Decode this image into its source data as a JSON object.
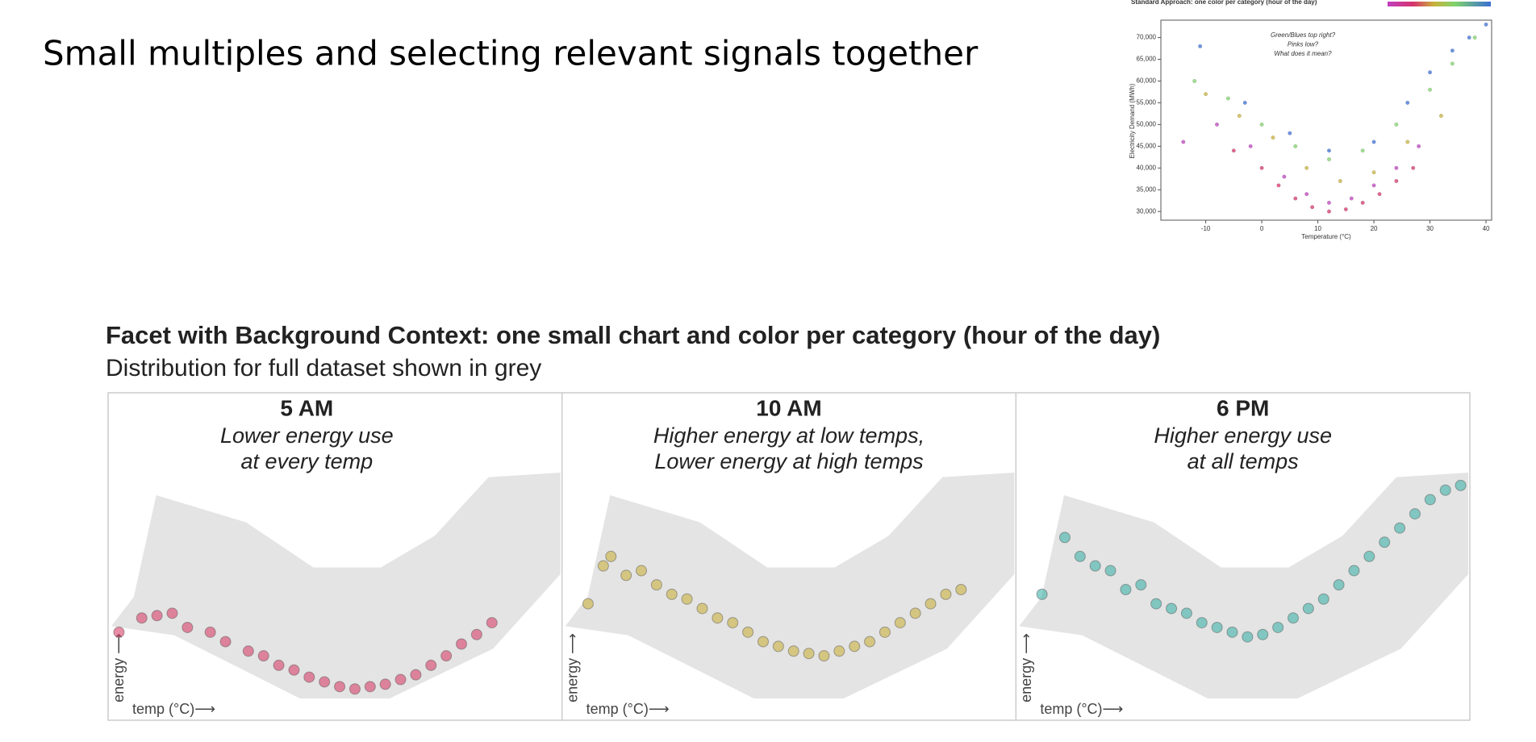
{
  "slide_title": "Small multiples and selecting relevant signals together",
  "facet_heading": "Facet with Background Context: one small chart and color per category (hour of the day)",
  "facet_subtitle": "Distribution for full dataset shown in grey",
  "chart_data": [
    {
      "type": "scatter",
      "title": "Standard Approach: one color per category (hour of the day)",
      "annotation": [
        "Green/Blues top right?",
        "Pinks low?",
        "What does it mean?"
      ],
      "x_label": "Temperature (°C)",
      "y_label": "Electricity Demand (MWh)",
      "xlim": [
        -18,
        41
      ],
      "ylim": [
        28000,
        74000
      ],
      "xticks": [
        -10,
        0,
        10,
        20,
        30,
        40
      ],
      "yticks": [
        {
          "value": 30000,
          "label": "30,000"
        },
        {
          "value": 35000,
          "label": "35,000"
        },
        {
          "value": 40000,
          "label": "40,000"
        },
        {
          "value": 45000,
          "label": "45,000"
        },
        {
          "value": 50000,
          "label": "50,000"
        },
        {
          "value": 55000,
          "label": "55,000"
        },
        {
          "value": 60000,
          "label": "60,000"
        },
        {
          "value": 65000,
          "label": "65,000"
        },
        {
          "value": 70000,
          "label": "70,000"
        }
      ],
      "series": [
        {
          "color": "#d6336c",
          "x": [
            -5,
            0,
            3,
            6,
            9,
            12,
            15,
            18,
            21,
            24,
            27
          ],
          "values": [
            44000,
            40000,
            36000,
            33000,
            31000,
            30000,
            30500,
            32000,
            34000,
            37000,
            40000
          ]
        },
        {
          "color": "#c03fbf",
          "x": [
            -14,
            -8,
            -2,
            4,
            8,
            12,
            16,
            20,
            24,
            28
          ],
          "values": [
            46000,
            50000,
            45000,
            38000,
            34000,
            32000,
            33000,
            36000,
            40000,
            45000
          ]
        },
        {
          "color": "#c9b23a",
          "x": [
            -10,
            -4,
            2,
            8,
            14,
            20,
            26,
            32
          ],
          "values": [
            57000,
            52000,
            47000,
            40000,
            37000,
            39000,
            46000,
            52000
          ]
        },
        {
          "color": "#7fd36a",
          "x": [
            -12,
            -6,
            0,
            6,
            12,
            18,
            24,
            30,
            34,
            38
          ],
          "values": [
            60000,
            56000,
            50000,
            45000,
            42000,
            44000,
            50000,
            58000,
            64000,
            70000
          ]
        },
        {
          "color": "#3b6fd6",
          "x": [
            -11,
            -3,
            5,
            12,
            20,
            26,
            30,
            34,
            37,
            40
          ],
          "values": [
            68000,
            55000,
            48000,
            44000,
            46000,
            55000,
            62000,
            67000,
            70000,
            73000
          ]
        }
      ]
    },
    {
      "type": "scatter",
      "title": "5 AM",
      "annotation": [
        "Lower energy use",
        "at every temp"
      ],
      "x_label": "temp (°C)⟶",
      "y_label": "energy ⟶",
      "xlim": [
        -18,
        41
      ],
      "ylim": [
        28000,
        74000
      ],
      "series": [
        {
          "color": "#d9416a",
          "x": [
            -17,
            -14,
            -12,
            -10,
            -8,
            -5,
            -3,
            0,
            2,
            4,
            6,
            8,
            10,
            12,
            14,
            16,
            18,
            20,
            22,
            24,
            26,
            28,
            30,
            32
          ],
          "values": [
            42000,
            45000,
            45500,
            46000,
            43000,
            42000,
            40000,
            38000,
            37000,
            35000,
            34000,
            32500,
            31500,
            30500,
            30000,
            30500,
            31000,
            32000,
            33000,
            35000,
            37000,
            39500,
            41500,
            44000
          ]
        }
      ]
    },
    {
      "type": "scatter",
      "title": "10 AM",
      "annotation": [
        "Higher energy at low temps,",
        "Lower energy at high temps"
      ],
      "x_label": "temp (°C)⟶",
      "y_label": "energy ⟶",
      "xlim": [
        -18,
        41
      ],
      "ylim": [
        28000,
        74000
      ],
      "series": [
        {
          "color": "#c9b040",
          "x": [
            -15,
            -13,
            -12,
            -10,
            -8,
            -6,
            -4,
            -2,
            0,
            2,
            4,
            6,
            8,
            10,
            12,
            14,
            16,
            18,
            20,
            22,
            24,
            26,
            28,
            30,
            32,
            34
          ],
          "values": [
            48000,
            56000,
            58000,
            54000,
            55000,
            52000,
            50000,
            49000,
            47000,
            45000,
            44000,
            42000,
            40000,
            39000,
            38000,
            37500,
            37000,
            38000,
            39000,
            40000,
            42000,
            44000,
            46000,
            48000,
            50000,
            51000
          ]
        }
      ]
    },
    {
      "type": "scatter",
      "title": "6 PM",
      "annotation": [
        "Higher energy use",
        "at all temps"
      ],
      "x_label": "temp (°C)⟶",
      "y_label": "energy ⟶",
      "xlim": [
        -18,
        41
      ],
      "ylim": [
        28000,
        74000
      ],
      "series": [
        {
          "color": "#3fb3a8",
          "x": [
            -15,
            -12,
            -10,
            -8,
            -6,
            -4,
            -2,
            0,
            2,
            4,
            6,
            8,
            10,
            12,
            14,
            16,
            18,
            20,
            22,
            24,
            26,
            28,
            30,
            32,
            34,
            36,
            38,
            40
          ],
          "values": [
            50000,
            62000,
            58000,
            56000,
            55000,
            51000,
            52000,
            48000,
            47000,
            46000,
            44000,
            43000,
            42000,
            41000,
            41500,
            43000,
            45000,
            47000,
            49000,
            52000,
            55000,
            58000,
            61000,
            64000,
            67000,
            70000,
            72000,
            73000
          ]
        }
      ]
    }
  ]
}
